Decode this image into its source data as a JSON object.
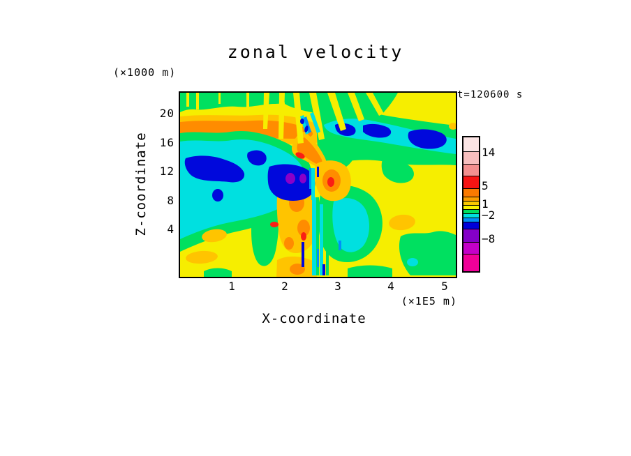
{
  "title": "zonal velocity",
  "timestamp": "t=120600 s",
  "y_axis": {
    "label": "Z-coordinate",
    "unit": "(×1000 m)",
    "ticks": [
      "20",
      "16",
      "12",
      "8",
      "4"
    ]
  },
  "x_axis": {
    "label": "X-coordinate",
    "unit": "(×1E5 m)",
    "ticks": [
      "1",
      "2",
      "3",
      "4",
      "5"
    ]
  },
  "colorbar": {
    "labels": [
      "14",
      "5",
      "1",
      "−2",
      "−8"
    ],
    "segments": [
      {
        "color": "#FBE4E4",
        "h": 21
      },
      {
        "color": "#F7BEBE",
        "h": 18
      },
      {
        "color": "#F38F8F",
        "h": 17
      },
      {
        "color": "#F71414",
        "h": 18
      },
      {
        "color": "#FB7A00",
        "h": 12
      },
      {
        "color": "#FB9E00",
        "h": 6
      },
      {
        "color": "#F8C800",
        "h": 6
      },
      {
        "color": "#F8F200",
        "h": 6
      },
      {
        "color": "#00E060",
        "h": 6
      },
      {
        "color": "#00E0E0",
        "h": 6
      },
      {
        "color": "#0090F8",
        "h": 6
      },
      {
        "color": "#0000D8",
        "h": 10
      },
      {
        "color": "#8400C8",
        "h": 19
      },
      {
        "color": "#C400C8",
        "h": 17
      },
      {
        "color": "#F00098",
        "h": 24
      }
    ]
  },
  "chart_data": {
    "type": "heatmap",
    "subtype": "filled_contour",
    "title": "zonal velocity",
    "time_label": "t=120600 s",
    "xlabel": "X-coordinate",
    "x_unit": "(×1E5 m)",
    "x_ticks": [
      1,
      2,
      3,
      4,
      5
    ],
    "x_range_1E5_m": [
      0,
      5.2
    ],
    "ylabel": "Z-coordinate",
    "y_unit": "(×1000 m)",
    "y_ticks": [
      4,
      8,
      12,
      16,
      20
    ],
    "y_range_1000_m": [
      -2,
      23
    ],
    "grid": false,
    "legend_position": "right vertical colorbar",
    "colorbar_tick_labels": [
      14,
      5,
      1,
      -2,
      -8
    ],
    "contour_levels": [
      -11,
      -8,
      -5,
      -2,
      -1,
      0,
      1,
      2,
      3,
      5,
      8,
      11,
      14
    ],
    "palette_low_to_high": [
      "#F00098",
      "#C400C8",
      "#8400C8",
      "#0000D8",
      "#0090F8",
      "#00E0E0",
      "#00E060",
      "#F8F200",
      "#F8C800",
      "#FB9E00",
      "#FB7A00",
      "#F71414",
      "#F38F8F",
      "#F7BEBE",
      "#FBE4E4"
    ],
    "features": [
      {
        "desc": "weak positive background u≈0–1 (yellow) over most of domain with patches u≈−1–0 (green)"
      },
      {
        "desc": "positive jet band u≈2–5 (amber/orange core) spanning x≈0–2.7 at z≈17–19, sloping down toward storm center"
      },
      {
        "desc": "negative layer u≈−1–−2 (cyan) at z≈8–16 over x≈0–2.4 with cores u≈−2–−5 (dark blue) near x≈0.2–1.6, z≈12–15"
      },
      {
        "desc": "intense negative cell u<−8 (dark blue with purple cores) at x≈1.9–2.5, z≈10–13.5"
      },
      {
        "desc": "intense positive cell u≈3–8 (orange with red cores) at x≈2.6–3.0, z≈8–13 and below storm at x≈1.9–2.6, z≈0–7"
      },
      {
        "desc": "fine vertical wave streaks (yellow/green/cyan/blue) fanning above and below storm center x≈2.3–3.3"
      },
      {
        "desc": "cyan band u≈−1–−2 with dark-blue cores u≈−2–−5 at z≈15.5–18 from x≈2.9 to 5.1"
      },
      {
        "desc": "amber patches u≈2–3 near surface at x≈0.4–0.9 z≈2–3.5, x≈0.1–0.8 z≈0.5–2, and x≈4.0–4.4 z≈6–8"
      },
      {
        "desc": "green region u≈−1–0 at lower right x≈4.2–5.2, z≈0–5 with small cyan spot"
      }
    ]
  }
}
